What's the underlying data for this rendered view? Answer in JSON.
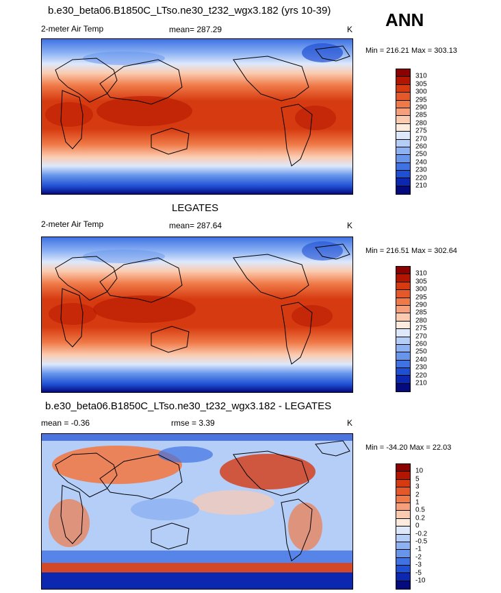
{
  "season": "ANN",
  "panels": [
    {
      "title": "b.e30_beta06.B1850C_LTso.ne30_t232_wgx3.182 (yrs 10-39)",
      "left_label": "2-meter Air Temp",
      "mean_label": "mean= 287.29",
      "stat_label": "",
      "units": "K",
      "minmax": "Min = 216.21 Max = 303.13"
    },
    {
      "title": "LEGATES",
      "left_label": "2-meter Air Temp",
      "mean_label": "mean= 287.64",
      "stat_label": "",
      "units": "K",
      "minmax": "Min = 216.51 Max = 302.64"
    },
    {
      "title": "b.e30_beta06.B1850C_LTso.ne30_t232_wgx3.182 - LEGATES",
      "left_label": "mean =  -0.36",
      "mean_label": "rmse =   3.39",
      "stat_label": "",
      "units": "K",
      "minmax": "Min = -34.20 Max =  22.03"
    }
  ],
  "colorbars": [
    {
      "labels": [
        "310",
        "305",
        "300",
        "295",
        "290",
        "285",
        "280",
        "275",
        "270",
        "260",
        "250",
        "240",
        "230",
        "220",
        "210"
      ],
      "colors": [
        "#8b0000",
        "#b41500",
        "#d63a10",
        "#e5582a",
        "#ef7a48",
        "#f5a07a",
        "#fbcbb0",
        "#fdebdd",
        "#dde8fb",
        "#b4cef8",
        "#8cb2f3",
        "#6795ec",
        "#3f72e3",
        "#1f4fd3",
        "#0c28b0",
        "#050a7d"
      ]
    },
    {
      "labels": [
        "310",
        "305",
        "300",
        "295",
        "290",
        "285",
        "280",
        "275",
        "270",
        "260",
        "250",
        "240",
        "230",
        "220",
        "210"
      ],
      "colors": [
        "#8b0000",
        "#b41500",
        "#d63a10",
        "#e5582a",
        "#ef7a48",
        "#f5a07a",
        "#fbcbb0",
        "#fdebdd",
        "#dde8fb",
        "#b4cef8",
        "#8cb2f3",
        "#6795ec",
        "#3f72e3",
        "#1f4fd3",
        "#0c28b0",
        "#050a7d"
      ]
    },
    {
      "labels": [
        "10",
        "5",
        "3",
        "2",
        "1",
        "0.5",
        "0.2",
        "0",
        "-0.2",
        "-0.5",
        "-1",
        "-2",
        "-3",
        "-5",
        "-10"
      ],
      "colors": [
        "#8b0000",
        "#b41500",
        "#d63a10",
        "#e5582a",
        "#ef7a48",
        "#f5a07a",
        "#fbcbb0",
        "#fdebdd",
        "#dde8fb",
        "#b4cef8",
        "#8cb2f3",
        "#6795ec",
        "#3f72e3",
        "#1f4fd3",
        "#0c28b0",
        "#050a7d"
      ]
    }
  ]
}
